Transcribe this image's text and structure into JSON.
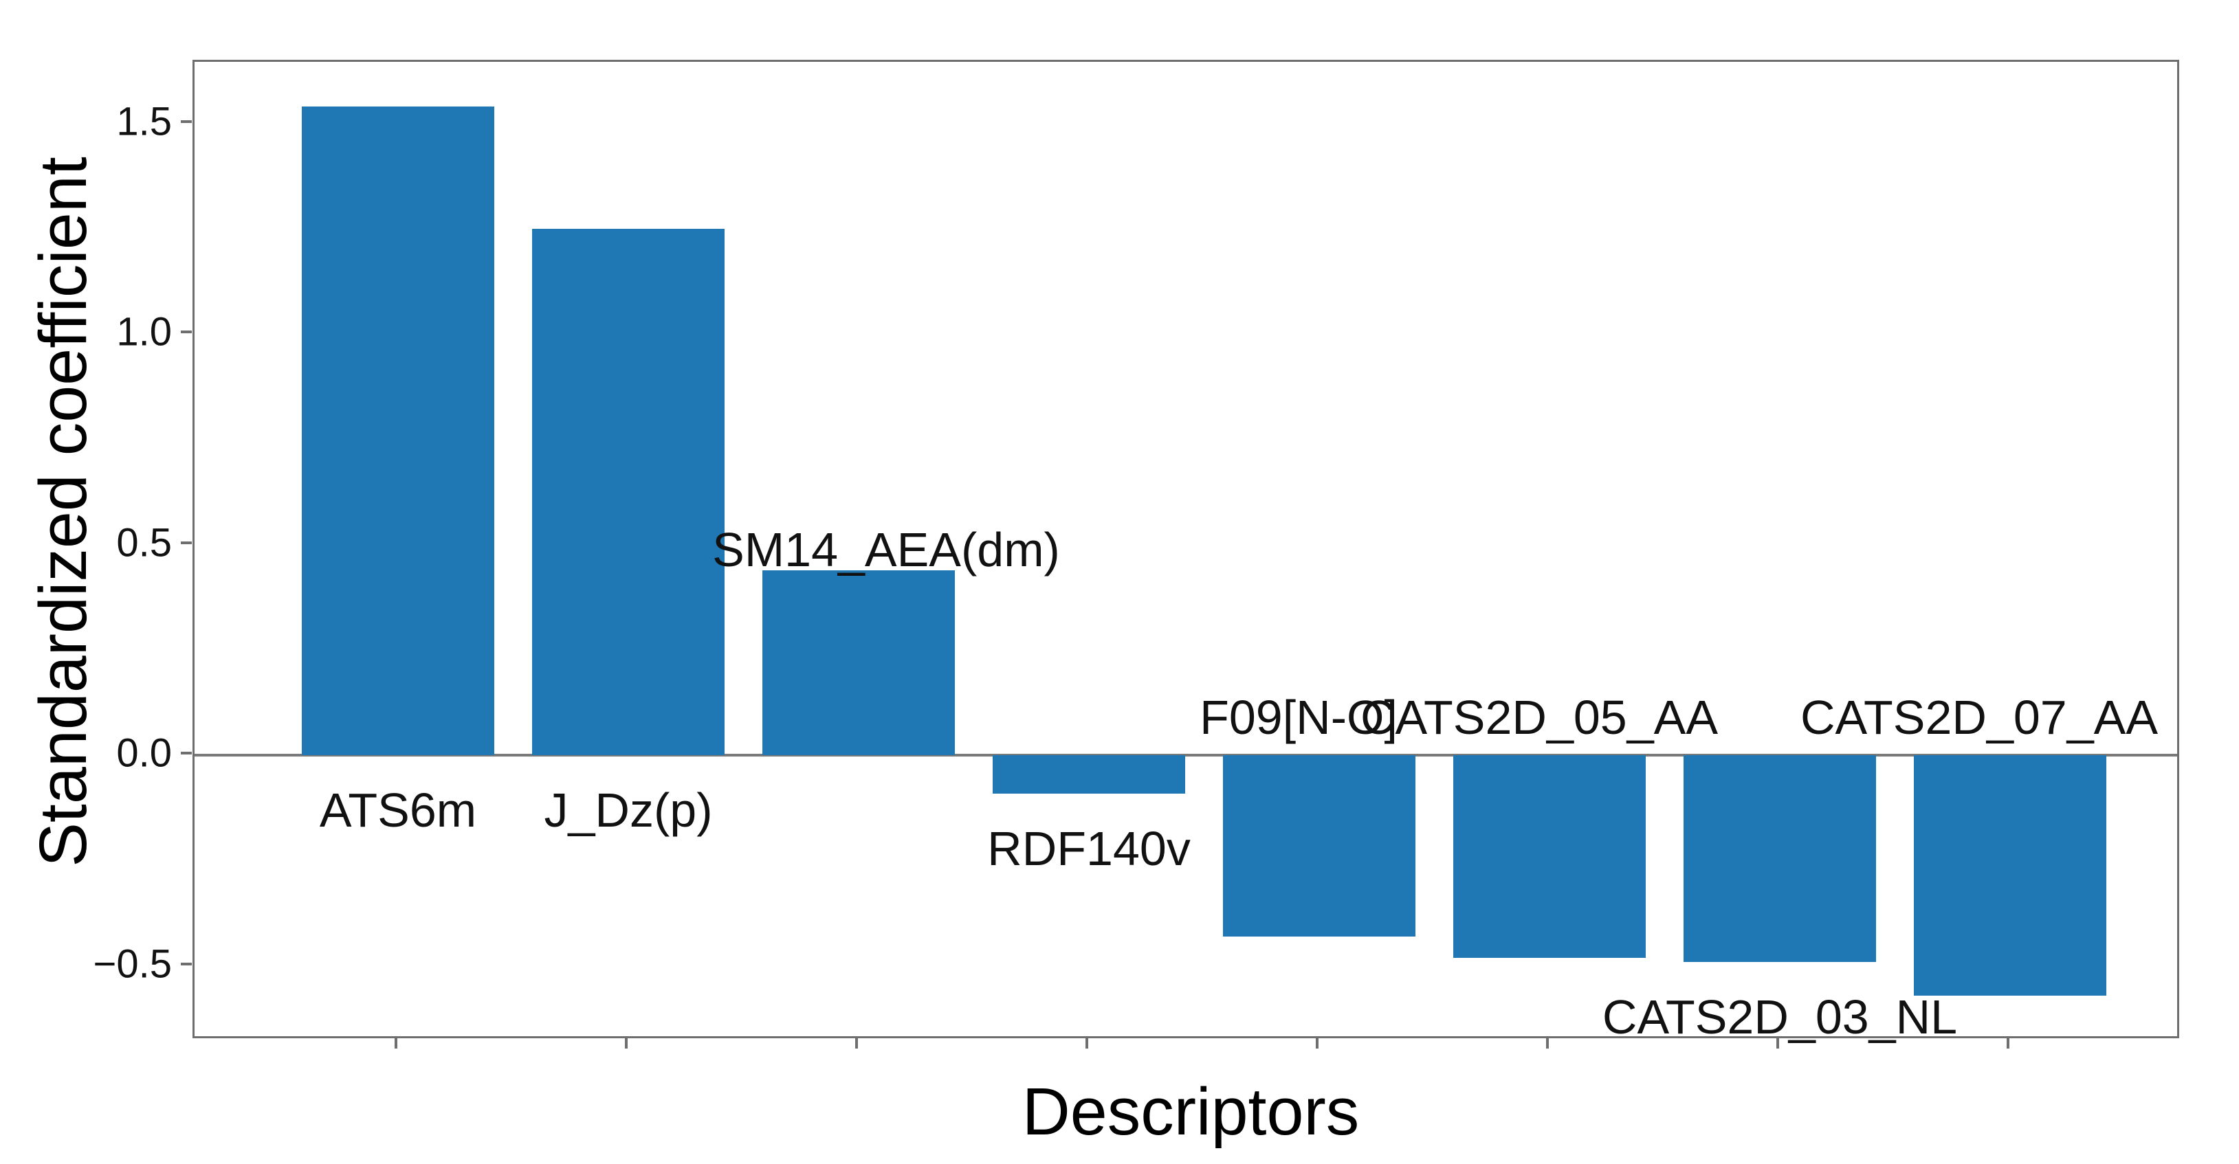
{
  "figure": {
    "background": "#ffffff"
  },
  "chart_data": {
    "type": "bar",
    "title": "",
    "xlabel": "Descriptors",
    "ylabel": "Standardized coefficient",
    "categories": [
      "ATS6m",
      "J_Dz(p)",
      "SM14_AEA(dm)",
      "RDF140v",
      "F09[N-O]",
      "CATS2D_05_AA",
      "CATS2D_03_NL",
      "CATS2D_07_AA"
    ],
    "values": [
      1.54,
      1.25,
      0.44,
      -0.09,
      -0.43,
      -0.48,
      -0.49,
      -0.57
    ],
    "bar_color": "#1f77b4",
    "axis_color": "#6e6e6e",
    "text_color": "#111111",
    "ylim": [
      -0.676,
      1.646
    ],
    "yticks": [
      1.5,
      1.0,
      0.5,
      0.0,
      -0.5
    ],
    "grid": false,
    "legend": null,
    "label_layout": [
      {
        "placement": "below-axis",
        "dx": 0
      },
      {
        "placement": "below-axis",
        "dx": 0
      },
      {
        "placement": "above-bar",
        "dx": 40
      },
      {
        "placement": "below-bar",
        "dx": 0
      },
      {
        "placement": "above-axis",
        "dx": -30
      },
      {
        "placement": "above-axis",
        "dx": -15
      },
      {
        "placement": "below-bar",
        "dx": 0
      },
      {
        "placement": "above-axis",
        "dx": -45
      }
    ]
  }
}
